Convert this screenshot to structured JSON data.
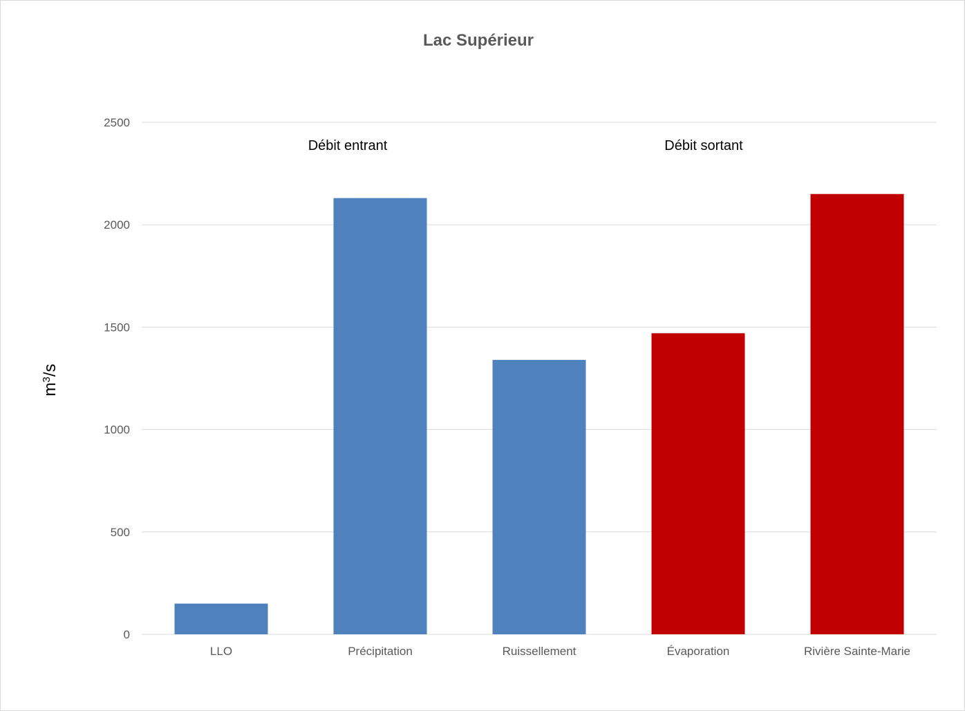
{
  "chart_data": {
    "type": "bar",
    "title": "Lac Supérieur",
    "xlabel": "",
    "ylabel": {
      "base": "m",
      "superscript": "3",
      "suffix": "/s"
    },
    "ylim": [
      0,
      2500
    ],
    "yticks": [
      0,
      500,
      1000,
      1500,
      2000,
      2500
    ],
    "grid": true,
    "legend": "none",
    "categories": [
      "LLO",
      "Précipitation",
      "Ruissellement",
      "Évaporation",
      "Rivière Sainte-Marie"
    ],
    "values": [
      150,
      2130,
      1340,
      1470,
      2150
    ],
    "bar_colors": [
      "#4f81bd",
      "#4f81bd",
      "#4f81bd",
      "#c00000",
      "#c00000"
    ],
    "annotations": [
      {
        "text": "Débit entrant"
      },
      {
        "text": "Débit sortant"
      }
    ],
    "colors": {
      "grid": "#d9d9d9",
      "axis_text": "#595959",
      "inflow": "#4f81bd",
      "outflow": "#c00000"
    }
  }
}
